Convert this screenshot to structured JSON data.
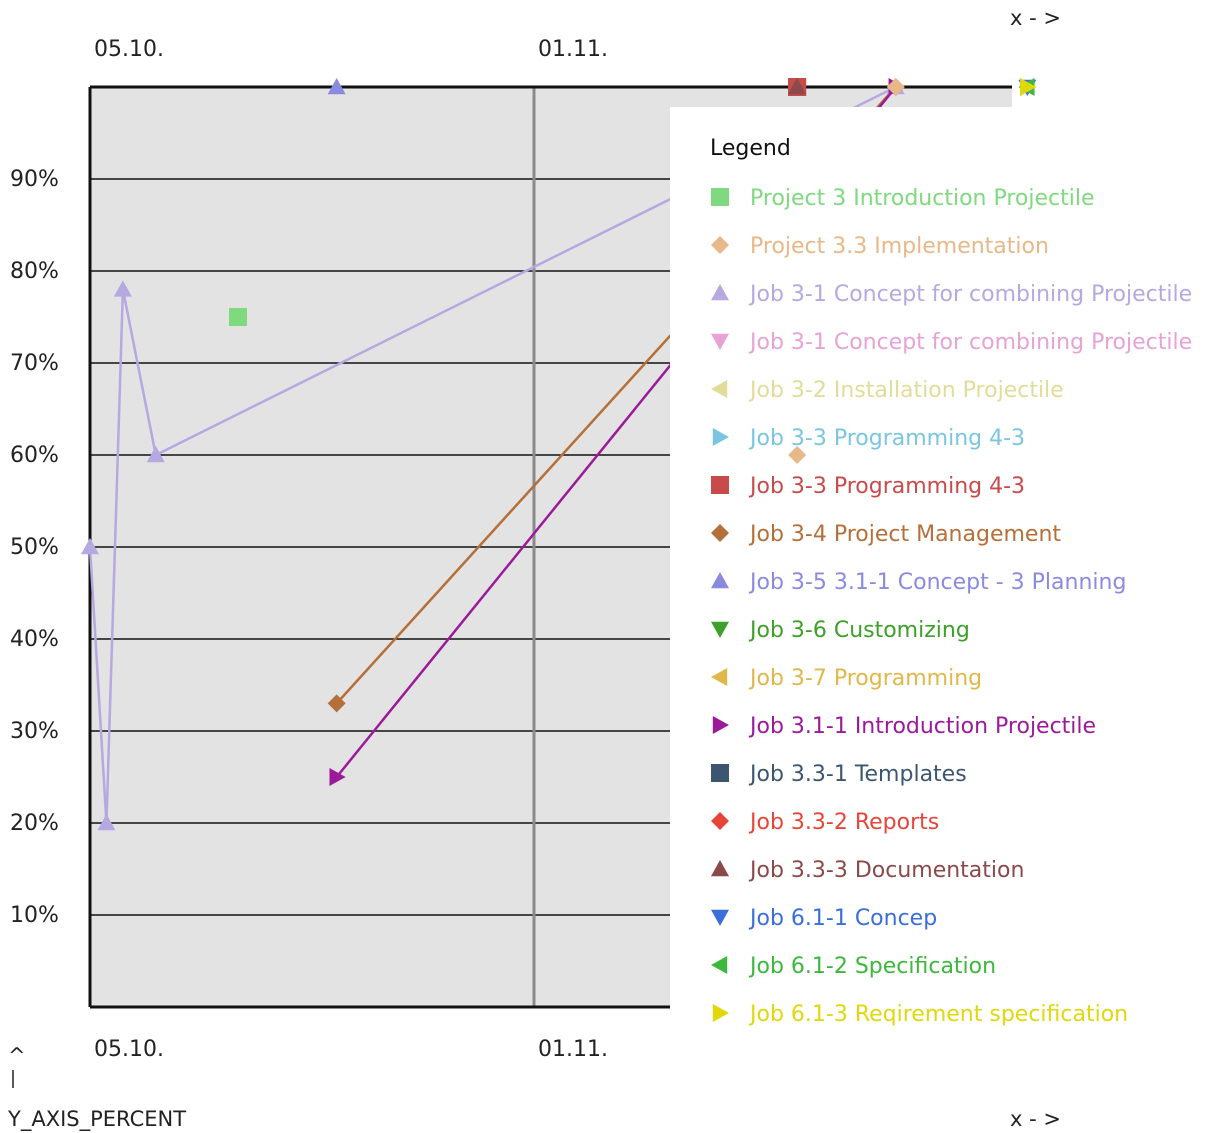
{
  "chart_data": {
    "type": "line",
    "x_axis": {
      "ticks": [
        {
          "label": "05.10.",
          "date": "2010-10-05"
        },
        {
          "label": "01.11.",
          "date": "2010-11-01"
        }
      ],
      "range": [
        "2010-10-05",
        "2010-12-01"
      ],
      "label_top": "x - >",
      "label_bottom": "x - >"
    },
    "y_axis": {
      "label": "Y_AXIS_PERCENT",
      "arrow": "^",
      "ylim": [
        0,
        100
      ],
      "ticks": [
        "10%",
        "20%",
        "30%",
        "40%",
        "50%",
        "60%",
        "70%",
        "80%",
        "90%"
      ],
      "tick_values": [
        10,
        20,
        30,
        40,
        50,
        60,
        70,
        80,
        90
      ]
    },
    "grid": "horizontal every 10% plus vertical line at 01.11.",
    "legend": {
      "title": "Legend",
      "placement": "right overlapping plot",
      "items": [
        {
          "label": "Project 3 Introduction Projectile",
          "color": "#7fd97f",
          "marker": "square"
        },
        {
          "label": "Project 3.3 Implementation",
          "color": "#e8b888",
          "marker": "diamond"
        },
        {
          "label": "Job 3-1 Concept for combining Projectile",
          "color": "#b6a8e0",
          "marker": "triangle-up"
        },
        {
          "label": "Job 3-1 Concept for combining Projectile",
          "color": "#e7a2d6",
          "marker": "triangle-down"
        },
        {
          "label": "Job 3-2 Installation  Projectile",
          "color": "#e2dc9a",
          "marker": "triangle-left"
        },
        {
          "label": "Job 3-3 Programming 4-3",
          "color": "#7ac6e0",
          "marker": "triangle-right"
        },
        {
          "label": "Job 3-3 Programming 4-3",
          "color": "#c94a4a",
          "marker": "square"
        },
        {
          "label": "Job 3-4 Project Management",
          "color": "#b56f38",
          "marker": "diamond"
        },
        {
          "label": "Job 3-5 3.1-1 Concept - 3 Planning",
          "color": "#8a8ae0",
          "marker": "triangle-up"
        },
        {
          "label": "Job 3-6 Customizing",
          "color": "#3ea02a",
          "marker": "triangle-down"
        },
        {
          "label": "Job 3-7 Programming",
          "color": "#e0b84a",
          "marker": "triangle-left"
        },
        {
          "label": "Job 3.1-1 Introduction Projectile",
          "color": "#9a1a9a",
          "marker": "triangle-right"
        },
        {
          "label": "Job 3.3-1 Templates",
          "color": "#3d5670",
          "marker": "square"
        },
        {
          "label": "Job 3.3-2 Reports",
          "color": "#e8453a",
          "marker": "diamond"
        },
        {
          "label": "Job 3.3-3 Documentation",
          "color": "#8a4a4a",
          "marker": "triangle-up"
        },
        {
          "label": "Job 6.1-1 Concep",
          "color": "#3a6ed8",
          "marker": "triangle-down"
        },
        {
          "label": "Job 6.1-2 Specification",
          "color": "#3cb83c",
          "marker": "triangle-left"
        },
        {
          "label": "Job 6.1-3 Reqirement specification",
          "color": "#e0d80a",
          "marker": "triangle-right"
        }
      ]
    },
    "series": [
      {
        "name": "Job 3-1 Concept for combining Projectile",
        "color": "#b6a8e0",
        "marker": "triangle-up",
        "lines": true,
        "points": [
          {
            "x": "2010-10-05",
            "y": 50
          },
          {
            "x": "2010-10-06",
            "y": 20
          },
          {
            "x": "2010-10-07",
            "y": 78
          },
          {
            "x": "2010-10-09",
            "y": 60
          },
          {
            "x": "2010-11-23",
            "y": 100
          }
        ]
      },
      {
        "name": "Job 3-4 Project Management",
        "color": "#b56f38",
        "marker": "diamond",
        "lines": true,
        "points": [
          {
            "x": "2010-10-20",
            "y": 33
          },
          {
            "x": "2010-11-23",
            "y": 100
          }
        ]
      },
      {
        "name": "Job 3.1-1 Introduction Projectile",
        "color": "#9a1a9a",
        "marker": "triangle-right",
        "lines": true,
        "points": [
          {
            "x": "2010-10-20",
            "y": 25
          },
          {
            "x": "2010-11-23",
            "y": 100
          }
        ]
      },
      {
        "name": "Project 3 Introduction Projectile",
        "color": "#7fd97f",
        "marker": "square",
        "lines": false,
        "points": [
          {
            "x": "2010-10-14",
            "y": 75
          }
        ]
      },
      {
        "name": "Project 3.3 Implementation",
        "color": "#e8b888",
        "marker": "diamond",
        "lines": false,
        "points": [
          {
            "x": "2010-11-17",
            "y": 60
          },
          {
            "x": "2010-11-23",
            "y": 100
          }
        ]
      },
      {
        "name": "Job 3-5 3.1-1 Concept - 3 Planning",
        "color": "#8a8ae0",
        "marker": "triangle-up",
        "lines": false,
        "points": [
          {
            "x": "2010-10-20",
            "y": 100
          }
        ]
      },
      {
        "name": "Job 3.3-1 Templates",
        "color": "#3d5670",
        "marker": "square",
        "lines": false,
        "points": [
          {
            "x": "2010-11-17",
            "y": 100
          }
        ]
      },
      {
        "name": "Job 3-3 Programming 4-3",
        "color": "#c94a4a",
        "marker": "square",
        "lines": false,
        "points": [
          {
            "x": "2010-11-17",
            "y": 100
          }
        ]
      },
      {
        "name": "Job 3.3-3 Documentation",
        "color": "#8a4a4a",
        "marker": "triangle-up",
        "lines": false,
        "points": [
          {
            "x": "2010-11-17",
            "y": 100
          }
        ]
      },
      {
        "name": "Job 3-3 Programming 4-3",
        "color": "#7ac6e0",
        "marker": "triangle-right",
        "lines": false,
        "points": [
          {
            "x": "2010-12-01",
            "y": 100
          }
        ]
      },
      {
        "name": "Job 6.1-1 Concep",
        "color": "#3a6ed8",
        "marker": "triangle-down",
        "lines": false,
        "points": [
          {
            "x": "2010-12-01",
            "y": 100
          }
        ]
      },
      {
        "name": "Job 6.1-2 Specification",
        "color": "#3cb83c",
        "marker": "triangle-left",
        "lines": false,
        "points": [
          {
            "x": "2010-12-01",
            "y": 100
          }
        ]
      },
      {
        "name": "Job 6.1-3 Reqirement specification",
        "color": "#e0d80a",
        "marker": "triangle-right",
        "lines": false,
        "points": [
          {
            "x": "2010-12-01",
            "y": 100
          }
        ]
      }
    ]
  }
}
